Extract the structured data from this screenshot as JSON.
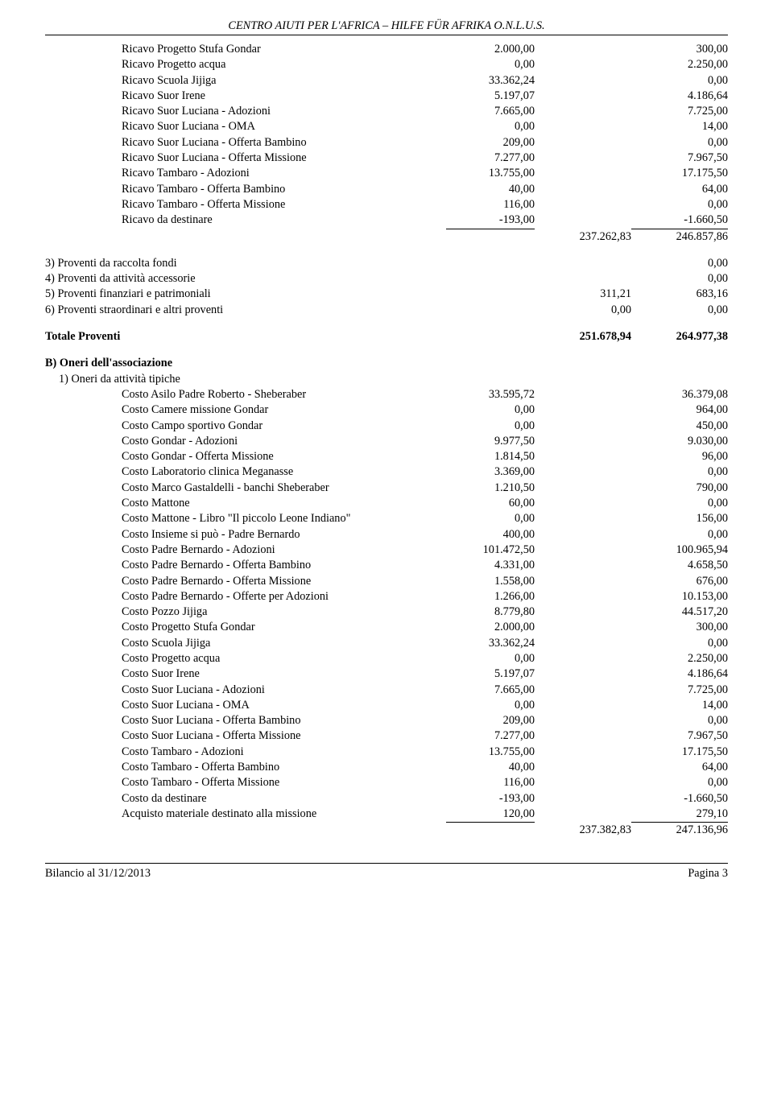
{
  "header": "CENTRO AIUTI PER L'AFRICA – HILFE FÜR AFRIKA O.N.L.U.S.",
  "ricavi_rows": [
    {
      "label": "Ricavo Progetto Stufa Gondar",
      "a": "2.000,00",
      "c": "300,00"
    },
    {
      "label": "Ricavo Progetto acqua",
      "a": "0,00",
      "c": "2.250,00"
    },
    {
      "label": "Ricavo Scuola Jijiga",
      "a": "33.362,24",
      "c": "0,00"
    },
    {
      "label": "Ricavo Suor Irene",
      "a": "5.197,07",
      "c": "4.186,64"
    },
    {
      "label": "Ricavo Suor Luciana - Adozioni",
      "a": "7.665,00",
      "c": "7.725,00"
    },
    {
      "label": "Ricavo Suor Luciana - OMA",
      "a": "0,00",
      "c": "14,00"
    },
    {
      "label": "Ricavo Suor Luciana - Offerta Bambino",
      "a": "209,00",
      "c": "0,00"
    },
    {
      "label": "Ricavo Suor Luciana - Offerta Missione",
      "a": "7.277,00",
      "c": "7.967,50"
    },
    {
      "label": "Ricavo Tambaro - Adozioni",
      "a": "13.755,00",
      "c": "17.175,50"
    },
    {
      "label": "Ricavo Tambaro - Offerta Bambino",
      "a": "40,00",
      "c": "64,00"
    },
    {
      "label": "Ricavo Tambaro - Offerta Missione",
      "a": "116,00",
      "c": "0,00"
    },
    {
      "label": "Ricavo da destinare",
      "a": "-193,00",
      "c": "-1.660,50",
      "underline": true
    }
  ],
  "ricavi_subtotal": {
    "b": "237.262,83",
    "c": "246.857,86"
  },
  "proventi_sections": [
    {
      "label": "3) Proventi da raccolta fondi",
      "b": "",
      "c": "0,00"
    },
    {
      "label": "4) Proventi da attività accessorie",
      "b": "",
      "c": "0,00"
    },
    {
      "label": "5) Proventi finanziari e patrimoniali",
      "b": "311,21",
      "c": "683,16"
    },
    {
      "label": "6) Proventi straordinari e altri proventi",
      "b": "0,00",
      "c": "0,00"
    }
  ],
  "totale_proventi": {
    "label": "Totale Proventi",
    "b": "251.678,94",
    "c": "264.977,38"
  },
  "section_b_title": "B) Oneri dell'associazione",
  "section_b_sub": "1) Oneri da attività tipiche",
  "oneri_rows": [
    {
      "label": "Costo Asilo Padre Roberto - Sheberaber",
      "a": "33.595,72",
      "c": "36.379,08"
    },
    {
      "label": "Costo Camere missione Gondar",
      "a": "0,00",
      "c": "964,00"
    },
    {
      "label": "Costo Campo sportivo Gondar",
      "a": "0,00",
      "c": "450,00"
    },
    {
      "label": "Costo Gondar - Adozioni",
      "a": "9.977,50",
      "c": "9.030,00"
    },
    {
      "label": "Costo Gondar - Offerta Missione",
      "a": "1.814,50",
      "c": "96,00"
    },
    {
      "label": "Costo Laboratorio clinica Meganasse",
      "a": "3.369,00",
      "c": "0,00"
    },
    {
      "label": "Costo Marco Gastaldelli - banchi Sheberaber",
      "a": "1.210,50",
      "c": "790,00"
    },
    {
      "label": "Costo Mattone",
      "a": "60,00",
      "c": "0,00"
    },
    {
      "label": "Costo Mattone - Libro \"Il piccolo Leone Indiano\"",
      "a": "0,00",
      "c": "156,00"
    },
    {
      "label": "Costo Insieme si può - Padre Bernardo",
      "a": "400,00",
      "c": "0,00"
    },
    {
      "label": "Costo Padre Bernardo - Adozioni",
      "a": "101.472,50",
      "c": "100.965,94"
    },
    {
      "label": "Costo Padre Bernardo - Offerta Bambino",
      "a": "4.331,00",
      "c": "4.658,50"
    },
    {
      "label": "Costo Padre Bernardo - Offerta Missione",
      "a": "1.558,00",
      "c": "676,00"
    },
    {
      "label": "Costo Padre Bernardo - Offerte per Adozioni",
      "a": "1.266,00",
      "c": "10.153,00"
    },
    {
      "label": "Costo Pozzo Jijiga",
      "a": "8.779,80",
      "c": "44.517,20"
    },
    {
      "label": "Costo Progetto Stufa Gondar",
      "a": "2.000,00",
      "c": "300,00"
    },
    {
      "label": "Costo Scuola Jijiga",
      "a": "33.362,24",
      "c": "0,00"
    },
    {
      "label": "Costo Progetto acqua",
      "a": "0,00",
      "c": "2.250,00"
    },
    {
      "label": "Costo Suor Irene",
      "a": "5.197,07",
      "c": "4.186,64"
    },
    {
      "label": "Costo Suor Luciana - Adozioni",
      "a": "7.665,00",
      "c": "7.725,00"
    },
    {
      "label": "Costo Suor Luciana - OMA",
      "a": "0,00",
      "c": "14,00"
    },
    {
      "label": "Costo Suor Luciana - Offerta Bambino",
      "a": "209,00",
      "c": "0,00"
    },
    {
      "label": "Costo Suor Luciana - Offerta Missione",
      "a": "7.277,00",
      "c": "7.967,50"
    },
    {
      "label": "Costo Tambaro - Adozioni",
      "a": "13.755,00",
      "c": "17.175,50"
    },
    {
      "label": "Costo Tambaro - Offerta Bambino",
      "a": "40,00",
      "c": "64,00"
    },
    {
      "label": "Costo Tambaro - Offerta Missione",
      "a": "116,00",
      "c": "0,00"
    },
    {
      "label": "Costo da destinare",
      "a": "-193,00",
      "c": "-1.660,50"
    },
    {
      "label": "Acquisto materiale destinato alla missione",
      "a": "120,00",
      "c": "279,10",
      "underline": true
    }
  ],
  "oneri_subtotal": {
    "b": "237.382,83",
    "c": "247.136,96"
  },
  "footer_left": "Bilancio al 31/12/2013",
  "footer_right": "Pagina 3"
}
